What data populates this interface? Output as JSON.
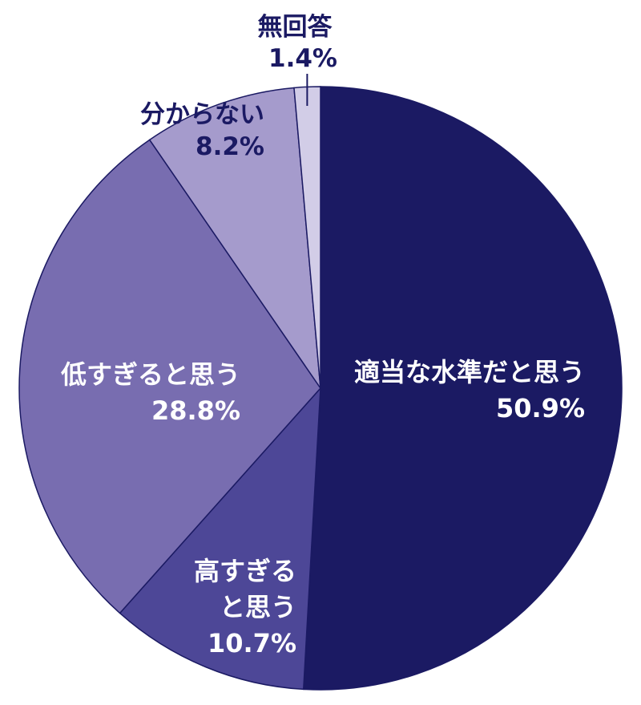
{
  "chart_data": {
    "type": "pie",
    "slices": [
      {
        "label": "適当な水準だと思う",
        "value": 50.9,
        "value_label": "50.9%",
        "color": "#1b1a63"
      },
      {
        "label_lines": [
          "高すぎる",
          "と思う"
        ],
        "label": "高すぎると思う",
        "value": 10.7,
        "value_label": "10.7%",
        "color": "#4d4797"
      },
      {
        "label": "低すぎると思う",
        "value": 28.8,
        "value_label": "28.8%",
        "color": "#786db0"
      },
      {
        "label": "分からない",
        "value": 8.2,
        "value_label": "8.2%",
        "color": "#a59bcc"
      },
      {
        "label": "無回答",
        "value": 1.4,
        "value_label": "1.4%",
        "color": "#d2cde7"
      }
    ],
    "start": "top",
    "direction": "clockwise",
    "stroke_color": "#1b1a63",
    "leader_line_color": "#1b1a63"
  }
}
